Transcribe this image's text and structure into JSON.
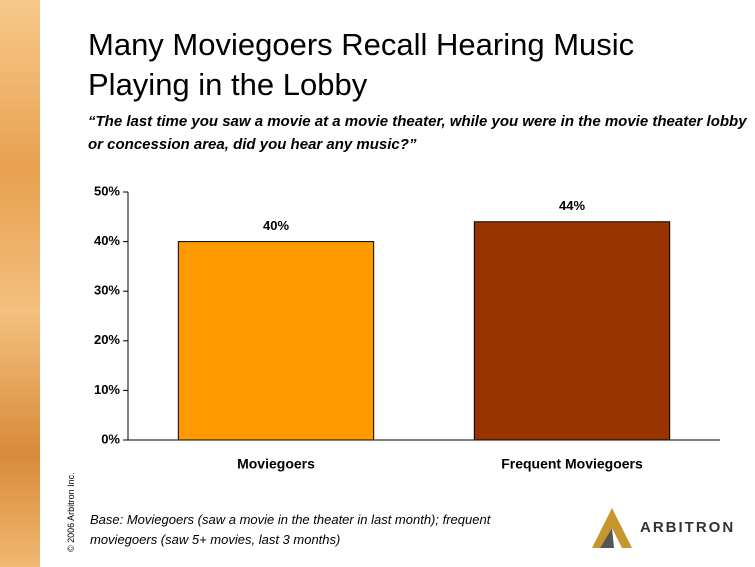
{
  "chart_data": {
    "type": "bar",
    "title": "Many Moviegoers Recall Hearing Music Playing in the Lobby",
    "subtitle": "“The last time you saw a movie at a movie theater, while you were in the movie theater lobby or concession area, did you hear any music?”",
    "categories": [
      "Moviegoers",
      "Frequent Moviegoers"
    ],
    "values": [
      40,
      44
    ],
    "value_labels": [
      "40%",
      "44%"
    ],
    "colors": [
      "#ff9900",
      "#993300"
    ],
    "ylim": [
      0,
      50
    ],
    "yticks": [
      {
        "value": 0,
        "label": "0%"
      },
      {
        "value": 10,
        "label": "10%"
      },
      {
        "value": 20,
        "label": "20%"
      },
      {
        "value": 30,
        "label": "30%"
      },
      {
        "value": 40,
        "label": "40%"
      },
      {
        "value": 50,
        "label": "50%"
      }
    ],
    "note": "Base:  Moviegoers (saw a movie in the theater in last month); frequent moviegoers (saw 5+ movies, last 3 months)",
    "copyright": "© 2006 Arbitron Inc.",
    "logo": "ARBITRON"
  }
}
